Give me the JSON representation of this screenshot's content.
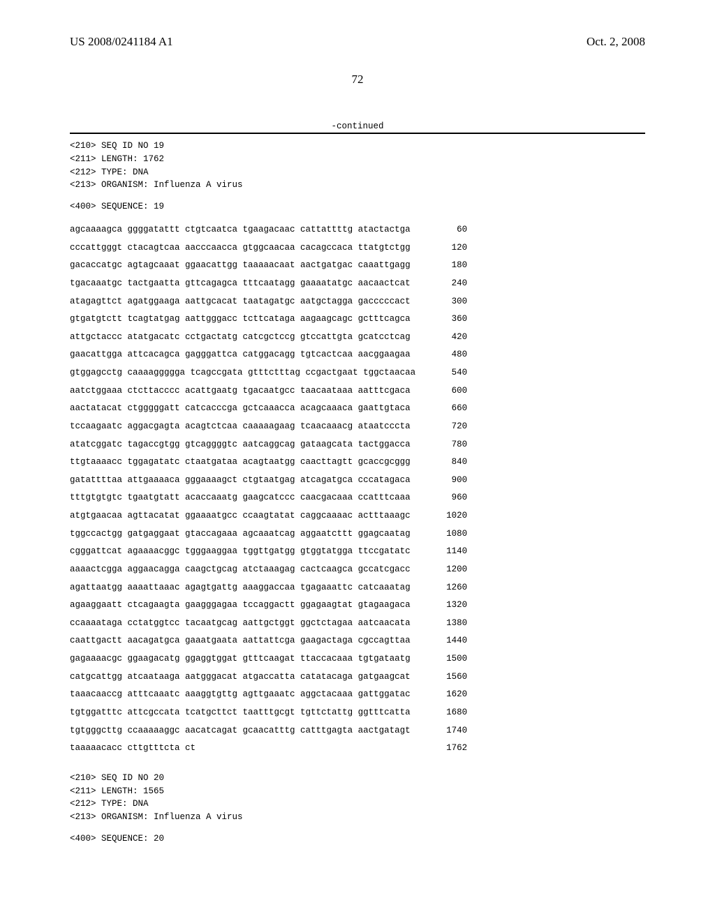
{
  "header": {
    "pub_number": "US 2008/0241184 A1",
    "pub_date": "Oct. 2, 2008",
    "page_number": "72"
  },
  "continued_label": "-continued",
  "seq19": {
    "meta_lines": [
      "<210> SEQ ID NO 19",
      "<211> LENGTH: 1762",
      "<212> TYPE: DNA",
      "<213> ORGANISM: Influenza A virus"
    ],
    "seq_label": "<400> SEQUENCE: 19",
    "rows": [
      {
        "seq": "agcaaaagca ggggatattt ctgtcaatca tgaagacaac cattattttg atactactga",
        "n": "60"
      },
      {
        "seq": "cccattgggt ctacagtcaa aacccaacca gtggcaacaa cacagccaca ttatgtctgg",
        "n": "120"
      },
      {
        "seq": "gacaccatgc agtagcaaat ggaacattgg taaaaacaat aactgatgac caaattgagg",
        "n": "180"
      },
      {
        "seq": "tgacaaatgc tactgaatta gttcagagca tttcaatagg gaaaatatgc aacaactcat",
        "n": "240"
      },
      {
        "seq": "atagagttct agatggaaga aattgcacat taatagatgc aatgctagga gacccccact",
        "n": "300"
      },
      {
        "seq": "gtgatgtctt tcagtatgag aattgggacc tcttcataga aagaagcagc gctttcagca",
        "n": "360"
      },
      {
        "seq": "attgctaccc atatgacatc cctgactatg catcgctccg gtccattgta gcatcctcag",
        "n": "420"
      },
      {
        "seq": "gaacattgga attcacagca gagggattca catggacagg tgtcactcaa aacggaagaa",
        "n": "480"
      },
      {
        "seq": "gtggagcctg caaaaggggga tcagccgata gtttctttag ccgactgaat tggctaacaa",
        "n": "540"
      },
      {
        "seq": "aatctggaaa ctcttacccc acattgaatg tgacaatgcc taacaataaa aatttcgaca",
        "n": "600"
      },
      {
        "seq": "aactatacat ctgggggatt catcacccga gctcaaacca acagcaaaca gaattgtaca",
        "n": "660"
      },
      {
        "seq": "tccaagaatc aggacgagta acagtctcaa caaaaagaag tcaacaaacg ataatcccta",
        "n": "720"
      },
      {
        "seq": "atatcggatc tagaccgtgg gtcaggggtc aatcaggcag gataagcata tactggacca",
        "n": "780"
      },
      {
        "seq": "ttgtaaaacc tggagatatc ctaatgataa acagtaatgg caacttagtt gcaccgcggg",
        "n": "840"
      },
      {
        "seq": "gatattttaa attgaaaaca gggaaaagct ctgtaatgag atcagatgca cccatagaca",
        "n": "900"
      },
      {
        "seq": "tttgtgtgtc tgaatgtatt acaccaaatg gaagcatccc caacgacaaa ccatttcaaa",
        "n": "960"
      },
      {
        "seq": "atgtgaacaa agttacatat ggaaaatgcc ccaagtatat caggcaaaac actttaaagc",
        "n": "1020"
      },
      {
        "seq": "tggccactgg gatgaggaat gtaccagaaa agcaaatcag aggaatcttt ggagcaatag",
        "n": "1080"
      },
      {
        "seq": "cgggattcat agaaaacggc tgggaaggaa tggttgatgg gtggtatgga ttccgatatc",
        "n": "1140"
      },
      {
        "seq": "aaaactcgga aggaacagga caagctgcag atctaaagag cactcaagca gccatcgacc",
        "n": "1200"
      },
      {
        "seq": "agattaatgg aaaattaaac agagtgattg aaaggaccaa tgagaaattc catcaaatag",
        "n": "1260"
      },
      {
        "seq": "agaaggaatt ctcagaagta gaagggagaa tccaggactt ggagaagtat gtagaagaca",
        "n": "1320"
      },
      {
        "seq": "ccaaaataga cctatggtcc tacaatgcag aattgctggt ggctctagaa aatcaacata",
        "n": "1380"
      },
      {
        "seq": "caattgactt aacagatgca gaaatgaata aattattcga gaagactaga cgccagttaa",
        "n": "1440"
      },
      {
        "seq": "gagaaaacgc ggaagacatg ggaggtggat gtttcaagat ttaccacaaa tgtgataatg",
        "n": "1500"
      },
      {
        "seq": "catgcattgg atcaataaga aatgggacat atgaccatta catatacaga gatgaagcat",
        "n": "1560"
      },
      {
        "seq": "taaacaaccg atttcaaatc aaaggtgttg agttgaaatc aggctacaaa gattggatac",
        "n": "1620"
      },
      {
        "seq": "tgtggatttc attcgccata tcatgcttct taatttgcgt tgttctattg ggtttcatta",
        "n": "1680"
      },
      {
        "seq": "tgtgggcttg ccaaaaaggc aacatcagat gcaacatttg catttgagta aactgatagt",
        "n": "1740"
      },
      {
        "seq": "taaaaacacc cttgtttcta ct",
        "n": "1762"
      }
    ]
  },
  "seq20": {
    "meta_lines": [
      "<210> SEQ ID NO 20",
      "<211> LENGTH: 1565",
      "<212> TYPE: DNA",
      "<213> ORGANISM: Influenza A virus"
    ],
    "seq_label": "<400> SEQUENCE: 20"
  }
}
